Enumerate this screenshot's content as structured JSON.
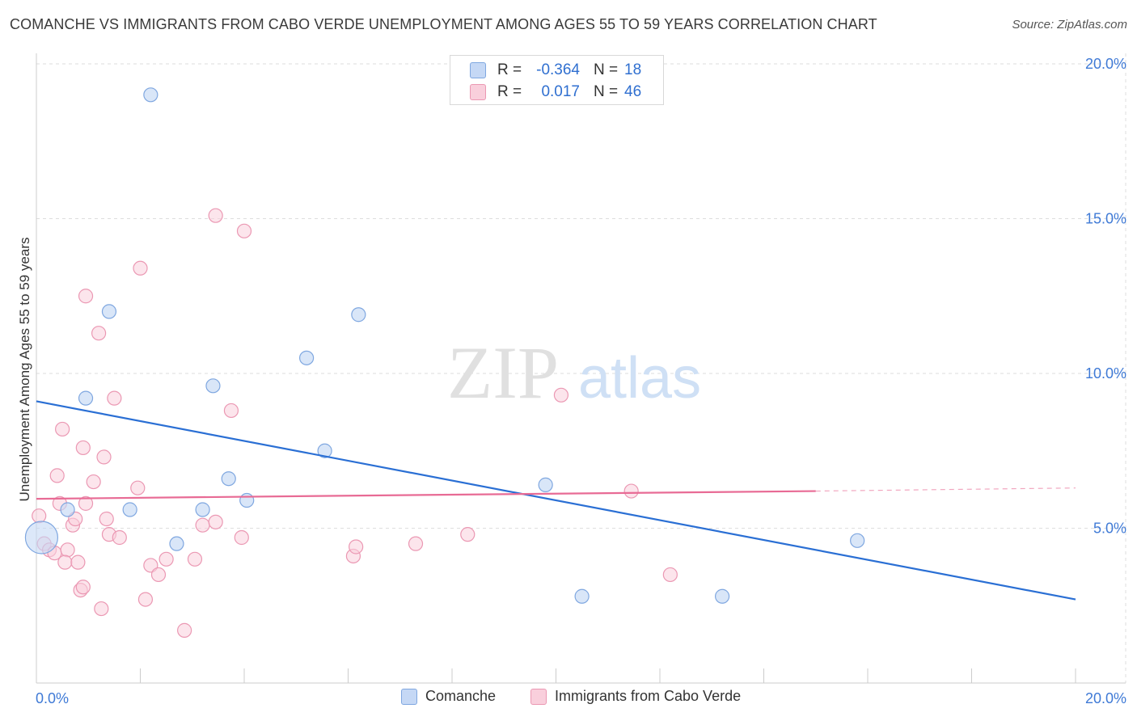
{
  "title": "COMANCHE VS IMMIGRANTS FROM CABO VERDE UNEMPLOYMENT AMONG AGES 55 TO 59 YEARS CORRELATION CHART",
  "source": "Source: ZipAtlas.com",
  "watermark": {
    "zip": "ZIP",
    "atlas": "atlas"
  },
  "legend_stats": {
    "row1": {
      "r_label": "R =",
      "r_value": "-0.364",
      "n_label": "N =",
      "n_value": "18"
    },
    "row2": {
      "r_label": "R =",
      "r_value": "0.017",
      "n_label": "N =",
      "n_value": "46"
    }
  },
  "bottom_legend": {
    "series1": "Comanche",
    "series2": "Immigrants from Cabo Verde"
  },
  "colors": {
    "blue_fill": "#c5d8f5",
    "blue_stroke": "#7fa7e0",
    "blue_line": "#2a6fd4",
    "pink_fill": "#f9cfdc",
    "pink_stroke": "#eb98b3",
    "pink_line": "#e86b95",
    "axis_text": "#3f7ad6",
    "grid": "#dedede"
  },
  "chart_data": {
    "type": "scatter",
    "title": "COMANCHE VS IMMIGRANTS FROM CABO VERDE UNEMPLOYMENT AMONG AGES 55 TO 59 YEARS CORRELATION CHART",
    "xlabel": "",
    "ylabel": "Unemployment Among Ages 55 to 59 years",
    "xlim": [
      0,
      20
    ],
    "ylim": [
      0,
      20
    ],
    "x_tick_labels": [
      "0.0%",
      "20.0%"
    ],
    "y_ticks": [
      5,
      10,
      15,
      20
    ],
    "y_tick_labels": [
      "5.0%",
      "10.0%",
      "15.0%",
      "20.0%"
    ],
    "grid": true,
    "series": [
      {
        "name": "Comanche",
        "r": -0.364,
        "n": 18,
        "trend": {
          "x": [
            0,
            20
          ],
          "y": [
            9.1,
            2.7
          ]
        },
        "points": [
          {
            "x": 0.1,
            "y": 4.7,
            "big": true
          },
          {
            "x": 2.2,
            "y": 19.0
          },
          {
            "x": 1.4,
            "y": 12.0
          },
          {
            "x": 6.2,
            "y": 11.9
          },
          {
            "x": 5.2,
            "y": 10.5
          },
          {
            "x": 3.4,
            "y": 9.6
          },
          {
            "x": 0.95,
            "y": 9.2
          },
          {
            "x": 5.55,
            "y": 7.5
          },
          {
            "x": 3.7,
            "y": 6.6
          },
          {
            "x": 9.8,
            "y": 6.4
          },
          {
            "x": 0.6,
            "y": 5.6
          },
          {
            "x": 1.8,
            "y": 5.6
          },
          {
            "x": 3.2,
            "y": 5.6
          },
          {
            "x": 4.05,
            "y": 5.9
          },
          {
            "x": 2.7,
            "y": 4.5
          },
          {
            "x": 15.8,
            "y": 4.6
          },
          {
            "x": 10.5,
            "y": 2.8
          },
          {
            "x": 13.2,
            "y": 2.8
          }
        ]
      },
      {
        "name": "Immigrants from Cabo Verde",
        "r": 0.017,
        "n": 46,
        "trend": {
          "x": [
            0,
            15
          ],
          "y": [
            5.95,
            6.2
          ]
        },
        "trend_dashed": {
          "x": [
            15,
            20
          ],
          "y": [
            6.2,
            6.3
          ]
        },
        "points": [
          {
            "x": 0.05,
            "y": 5.4
          },
          {
            "x": 0.15,
            "y": 4.5
          },
          {
            "x": 0.25,
            "y": 4.3
          },
          {
            "x": 0.35,
            "y": 4.2
          },
          {
            "x": 0.4,
            "y": 6.7
          },
          {
            "x": 0.5,
            "y": 8.2
          },
          {
            "x": 0.45,
            "y": 5.8
          },
          {
            "x": 0.6,
            "y": 4.3
          },
          {
            "x": 0.55,
            "y": 3.9
          },
          {
            "x": 0.7,
            "y": 5.1
          },
          {
            "x": 0.75,
            "y": 5.3
          },
          {
            "x": 0.8,
            "y": 3.9
          },
          {
            "x": 0.9,
            "y": 7.6
          },
          {
            "x": 0.85,
            "y": 3.0
          },
          {
            "x": 0.95,
            "y": 5.8
          },
          {
            "x": 0.9,
            "y": 3.1
          },
          {
            "x": 1.1,
            "y": 6.5
          },
          {
            "x": 1.3,
            "y": 7.3
          },
          {
            "x": 1.2,
            "y": 11.3
          },
          {
            "x": 0.95,
            "y": 12.5
          },
          {
            "x": 1.25,
            "y": 2.4
          },
          {
            "x": 1.35,
            "y": 5.3
          },
          {
            "x": 1.4,
            "y": 4.8
          },
          {
            "x": 1.5,
            "y": 9.2
          },
          {
            "x": 1.6,
            "y": 4.7
          },
          {
            "x": 1.95,
            "y": 6.3
          },
          {
            "x": 2.0,
            "y": 13.4
          },
          {
            "x": 2.1,
            "y": 2.7
          },
          {
            "x": 2.2,
            "y": 3.8
          },
          {
            "x": 2.35,
            "y": 3.5
          },
          {
            "x": 2.5,
            "y": 4.0
          },
          {
            "x": 2.85,
            "y": 1.7
          },
          {
            "x": 3.05,
            "y": 4.0
          },
          {
            "x": 3.2,
            "y": 5.1
          },
          {
            "x": 3.45,
            "y": 5.2
          },
          {
            "x": 3.45,
            "y": 15.1
          },
          {
            "x": 3.75,
            "y": 8.8
          },
          {
            "x": 3.95,
            "y": 4.7
          },
          {
            "x": 4.0,
            "y": 14.6
          },
          {
            "x": 6.1,
            "y": 4.1
          },
          {
            "x": 6.15,
            "y": 4.4
          },
          {
            "x": 7.3,
            "y": 4.5
          },
          {
            "x": 8.3,
            "y": 4.8
          },
          {
            "x": 10.1,
            "y": 9.3
          },
          {
            "x": 11.45,
            "y": 6.2
          },
          {
            "x": 12.2,
            "y": 3.5
          }
        ]
      }
    ]
  }
}
